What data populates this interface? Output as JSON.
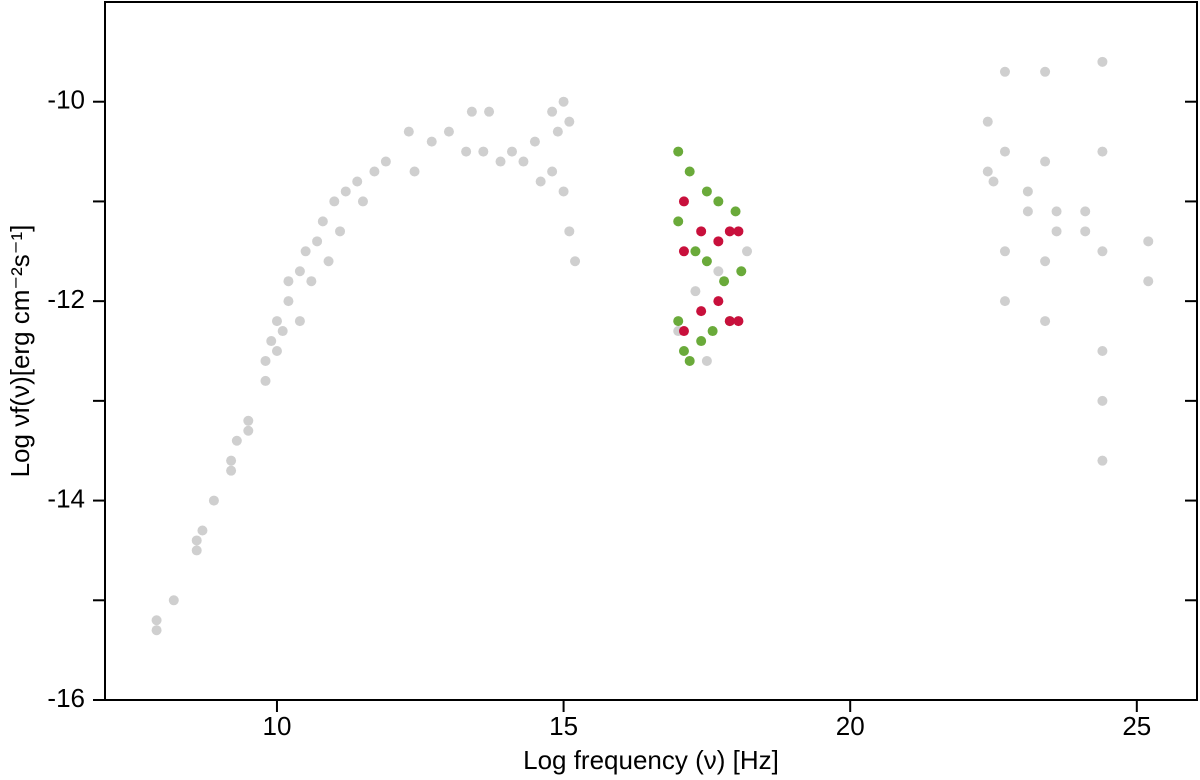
{
  "chart_data": {
    "type": "scatter",
    "x_label": "Log frequency (ν) [Hz]",
    "y_label": "Log νf(ν)[erg cm⁻²s⁻¹]",
    "xlim": [
      7,
      26.05
    ],
    "ylim": [
      -16,
      -9
    ],
    "xticks": [
      10,
      15,
      20,
      25
    ],
    "yticks": [
      -10,
      -12,
      -14,
      -16
    ],
    "yticks_minor": [
      -11,
      -13,
      -15
    ],
    "series": [
      {
        "color": "#cfcfcf",
        "x": [
          7.9,
          7.9,
          8.2,
          8.6,
          8.7,
          8.6,
          8.9,
          9.2,
          9.2,
          9.3,
          9.5,
          9.5,
          9.8,
          9.8,
          9.9,
          10.0,
          10.0,
          10.1,
          10.2,
          10.2,
          10.4,
          10.4,
          10.5,
          10.6,
          10.7,
          10.8,
          10.9,
          11.0,
          11.1,
          11.2,
          11.4,
          11.5,
          11.7,
          11.9,
          12.3,
          12.4,
          12.7,
          13.0,
          13.3,
          13.4,
          13.6,
          13.7,
          13.9,
          14.1,
          14.3,
          14.5,
          14.6,
          14.8,
          14.8,
          14.9,
          15.0,
          15.0,
          15.1,
          15.1,
          15.2,
          17.0,
          17.3,
          17.7,
          18.2,
          17.5,
          22.4,
          22.4,
          22.5,
          22.7,
          22.7,
          22.7,
          22.7,
          23.1,
          23.1,
          23.4,
          23.4,
          23.4,
          23.4,
          23.6,
          23.6,
          24.1,
          24.1,
          24.4,
          24.4,
          24.4,
          24.4,
          24.4,
          24.4,
          25.2,
          25.2
        ],
        "y": [
          -15.3,
          -15.2,
          -15.0,
          -14.4,
          -14.3,
          -14.5,
          -14.0,
          -13.6,
          -13.7,
          -13.4,
          -13.2,
          -13.3,
          -12.8,
          -12.6,
          -12.4,
          -12.5,
          -12.2,
          -12.3,
          -12.0,
          -11.8,
          -12.2,
          -11.7,
          -11.5,
          -11.8,
          -11.4,
          -11.2,
          -11.6,
          -11.0,
          -11.3,
          -10.9,
          -10.8,
          -11.0,
          -10.7,
          -10.6,
          -10.3,
          -10.7,
          -10.4,
          -10.3,
          -10.5,
          -10.1,
          -10.5,
          -10.1,
          -10.6,
          -10.5,
          -10.6,
          -10.4,
          -10.8,
          -10.1,
          -10.7,
          -10.3,
          -10.0,
          -10.9,
          -10.2,
          -11.3,
          -11.6,
          -12.3,
          -11.9,
          -11.7,
          -11.5,
          -12.6,
          -10.2,
          -10.7,
          -10.8,
          -9.7,
          -10.5,
          -11.5,
          -12.0,
          -10.9,
          -11.1,
          -9.7,
          -10.6,
          -11.6,
          -12.2,
          -11.1,
          -11.3,
          -11.1,
          -11.3,
          -9.6,
          -10.5,
          -11.5,
          -12.5,
          -13.0,
          -13.6,
          -11.4,
          -11.8
        ]
      },
      {
        "color": "#6aaa3a",
        "x": [
          17.0,
          17.0,
          17.0,
          17.1,
          17.2,
          17.3,
          17.4,
          17.5,
          17.6,
          17.7,
          17.8,
          17.9,
          18.0,
          18.1,
          17.2,
          17.5
        ],
        "y": [
          -10.5,
          -11.2,
          -12.2,
          -12.5,
          -10.7,
          -11.5,
          -12.4,
          -10.9,
          -12.3,
          -11.0,
          -11.8,
          -12.2,
          -11.1,
          -11.7,
          -12.6,
          -11.6
        ]
      },
      {
        "color": "#c8103c",
        "x": [
          17.1,
          17.1,
          17.1,
          17.4,
          17.4,
          17.7,
          17.7,
          17.9,
          17.9,
          18.05,
          18.05
        ],
        "y": [
          -11.0,
          -11.5,
          -12.3,
          -11.3,
          -12.1,
          -11.4,
          -12.0,
          -11.3,
          -12.2,
          -11.3,
          -12.2
        ]
      }
    ]
  }
}
